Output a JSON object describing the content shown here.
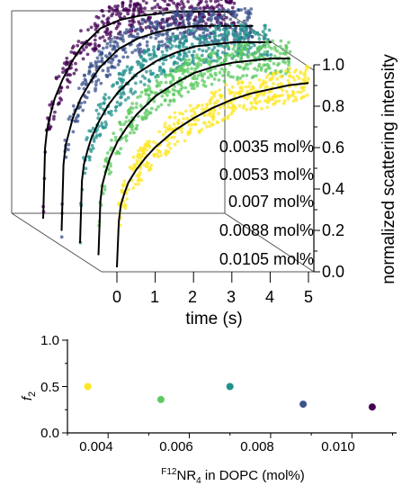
{
  "chart_data": [
    {
      "type": "line",
      "subtype": "3d-waterfall-scatter-with-fit",
      "xlabel": "time (s)",
      "zlabel": "normalized scattering intensity",
      "xlim": [
        -0.2,
        5.2
      ],
      "zlim": [
        0.0,
        1.0
      ],
      "x_ticks": [
        "0",
        "1",
        "2",
        "3",
        "4",
        "5"
      ],
      "z_ticks": [
        "0.0",
        "0.2",
        "0.4",
        "0.6",
        "0.8",
        "1.0"
      ],
      "legend_placement": "right",
      "series": [
        {
          "name": "0.0035 mol%",
          "concentration": 0.0035,
          "color": "#fde725",
          "t": [
            0,
            0.05,
            0.1,
            0.2,
            0.3,
            0.5,
            0.75,
            1.0,
            1.5,
            2.0,
            2.5,
            3.0,
            3.5,
            4.0,
            4.5,
            5.0
          ],
          "intensity": [
            0.0,
            0.22,
            0.3,
            0.36,
            0.41,
            0.47,
            0.53,
            0.58,
            0.66,
            0.72,
            0.77,
            0.81,
            0.84,
            0.86,
            0.88,
            0.89
          ]
        },
        {
          "name": "0.0053 mol%",
          "concentration": 0.0053,
          "color": "#5ec962",
          "t": [
            0,
            0.05,
            0.1,
            0.2,
            0.3,
            0.5,
            0.75,
            1.0,
            1.5,
            2.0,
            2.5,
            3.0,
            3.5,
            4.0,
            4.5,
            5.0
          ],
          "intensity": [
            0.0,
            0.26,
            0.34,
            0.41,
            0.47,
            0.55,
            0.62,
            0.68,
            0.77,
            0.83,
            0.88,
            0.91,
            0.93,
            0.94,
            0.95,
            0.95
          ]
        },
        {
          "name": "0.007 mol%",
          "concentration": 0.007,
          "color": "#21918c",
          "t": [
            0,
            0.05,
            0.1,
            0.2,
            0.3,
            0.5,
            0.75,
            1.0,
            1.5,
            2.0,
            2.5,
            3.0,
            3.5,
            4.0,
            4.5,
            5.0
          ],
          "intensity": [
            0.0,
            0.3,
            0.38,
            0.45,
            0.51,
            0.59,
            0.67,
            0.73,
            0.82,
            0.88,
            0.92,
            0.95,
            0.96,
            0.97,
            0.97,
            0.97
          ]
        },
        {
          "name": "0.0088 mol%",
          "concentration": 0.0088,
          "color": "#3b528b",
          "t": [
            0,
            0.05,
            0.1,
            0.2,
            0.3,
            0.5,
            0.75,
            1.0,
            1.5,
            2.0,
            2.5,
            3.0,
            3.5,
            4.0,
            4.5,
            5.0
          ],
          "intensity": [
            0.0,
            0.32,
            0.41,
            0.48,
            0.55,
            0.64,
            0.72,
            0.79,
            0.88,
            0.93,
            0.96,
            0.98,
            0.99,
            0.99,
            0.99,
            0.99
          ]
        },
        {
          "name": "0.0105 mol%",
          "concentration": 0.0105,
          "color": "#440154",
          "t": [
            0,
            0.05,
            0.1,
            0.2,
            0.3,
            0.5,
            0.75,
            1.0,
            1.5,
            2.0,
            2.5,
            3.0,
            3.5,
            4.0,
            4.5,
            5.0
          ],
          "intensity": [
            0.0,
            0.34,
            0.43,
            0.51,
            0.58,
            0.67,
            0.76,
            0.83,
            0.92,
            0.96,
            0.98,
            0.99,
            1.0,
            1.0,
            1.0,
            1.0
          ]
        }
      ]
    },
    {
      "type": "scatter",
      "xlabel": "F12NR4 in DOPC (mol%)",
      "xlabel_parts": {
        "sup": "F12",
        "main": "NR",
        "sub": "4",
        "rest": " in DOPC (mol%)"
      },
      "ylabel_parts": {
        "main": "f",
        "sub": "2"
      },
      "xlim": [
        0.003,
        0.0111
      ],
      "ylim": [
        0.0,
        1.0
      ],
      "x_ticks": [
        "0.004",
        "0.006",
        "0.008",
        "0.010"
      ],
      "y_ticks": [
        "0.0",
        "0.5",
        "1.0"
      ],
      "points": [
        {
          "x": 0.0035,
          "y": 0.5,
          "color": "#fde725"
        },
        {
          "x": 0.0053,
          "y": 0.36,
          "color": "#5ec962"
        },
        {
          "x": 0.007,
          "y": 0.5,
          "color": "#21918c"
        },
        {
          "x": 0.0088,
          "y": 0.31,
          "color": "#3b528b"
        },
        {
          "x": 0.0105,
          "y": 0.28,
          "color": "#440154"
        }
      ]
    }
  ]
}
